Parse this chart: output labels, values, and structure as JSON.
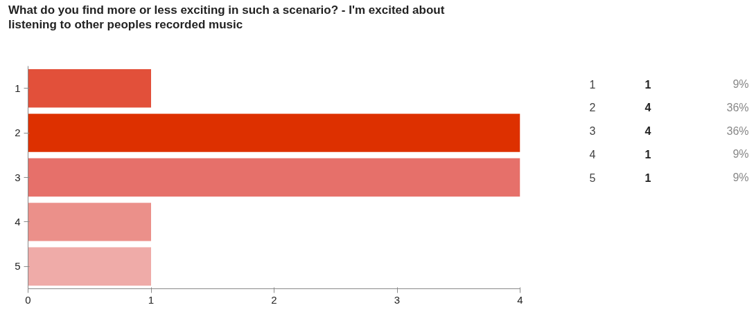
{
  "chart_data": {
    "type": "bar",
    "orientation": "horizontal",
    "title": "What do you find more or less exciting in such a scenario? - I'm excited about\nlistening to other peoples recorded music",
    "categories": [
      "1",
      "2",
      "3",
      "4",
      "5"
    ],
    "values": [
      1,
      4,
      4,
      1,
      1
    ],
    "colors": [
      "#e2503a",
      "#dd3000",
      "#e6706a",
      "#eb908a",
      "#efaba8"
    ],
    "xlim": [
      0,
      4
    ],
    "xticks": [
      0,
      1,
      2,
      3,
      4
    ],
    "annotations": [
      "1",
      "9%",
      "4",
      "36%",
      "4",
      "36%",
      "1",
      "9%",
      "1",
      "9%"
    ]
  }
}
